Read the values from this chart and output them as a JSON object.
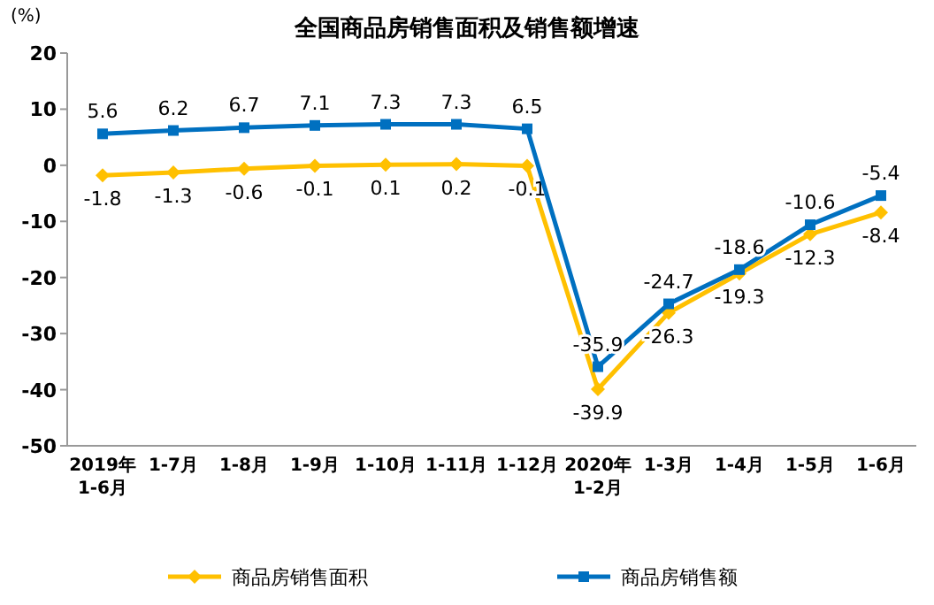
{
  "chart_data": {
    "type": "line",
    "title": "全国商品房销售面积及销售额增速",
    "ylabel": "(%)",
    "categories": [
      "2019年\n1-6月",
      "1-7月",
      "1-8月",
      "1-9月",
      "1-10月",
      "1-11月",
      "1-12月",
      "2020年\n1-2月",
      "1-3月",
      "1-4月",
      "1-5月",
      "1-6月"
    ],
    "series": [
      {
        "name": "商品房销售面积",
        "color": "#ffc000",
        "marker": "diamond",
        "values": [
          -1.8,
          -1.3,
          -0.6,
          -0.1,
          0.1,
          0.2,
          -0.1,
          -39.9,
          -26.3,
          -19.3,
          -12.3,
          -8.4
        ]
      },
      {
        "name": "商品房销售额",
        "color": "#0070c0",
        "marker": "square",
        "values": [
          5.6,
          6.2,
          6.7,
          7.1,
          7.3,
          7.3,
          6.5,
          -35.9,
          -24.7,
          -18.6,
          -10.6,
          -5.4
        ]
      }
    ],
    "ylim": [
      -50,
      20
    ],
    "yticks": [
      -50,
      -40,
      -30,
      -20,
      -10,
      0,
      10,
      20
    ],
    "data_labels": true,
    "legend": "bottom",
    "line_style": "solid"
  }
}
